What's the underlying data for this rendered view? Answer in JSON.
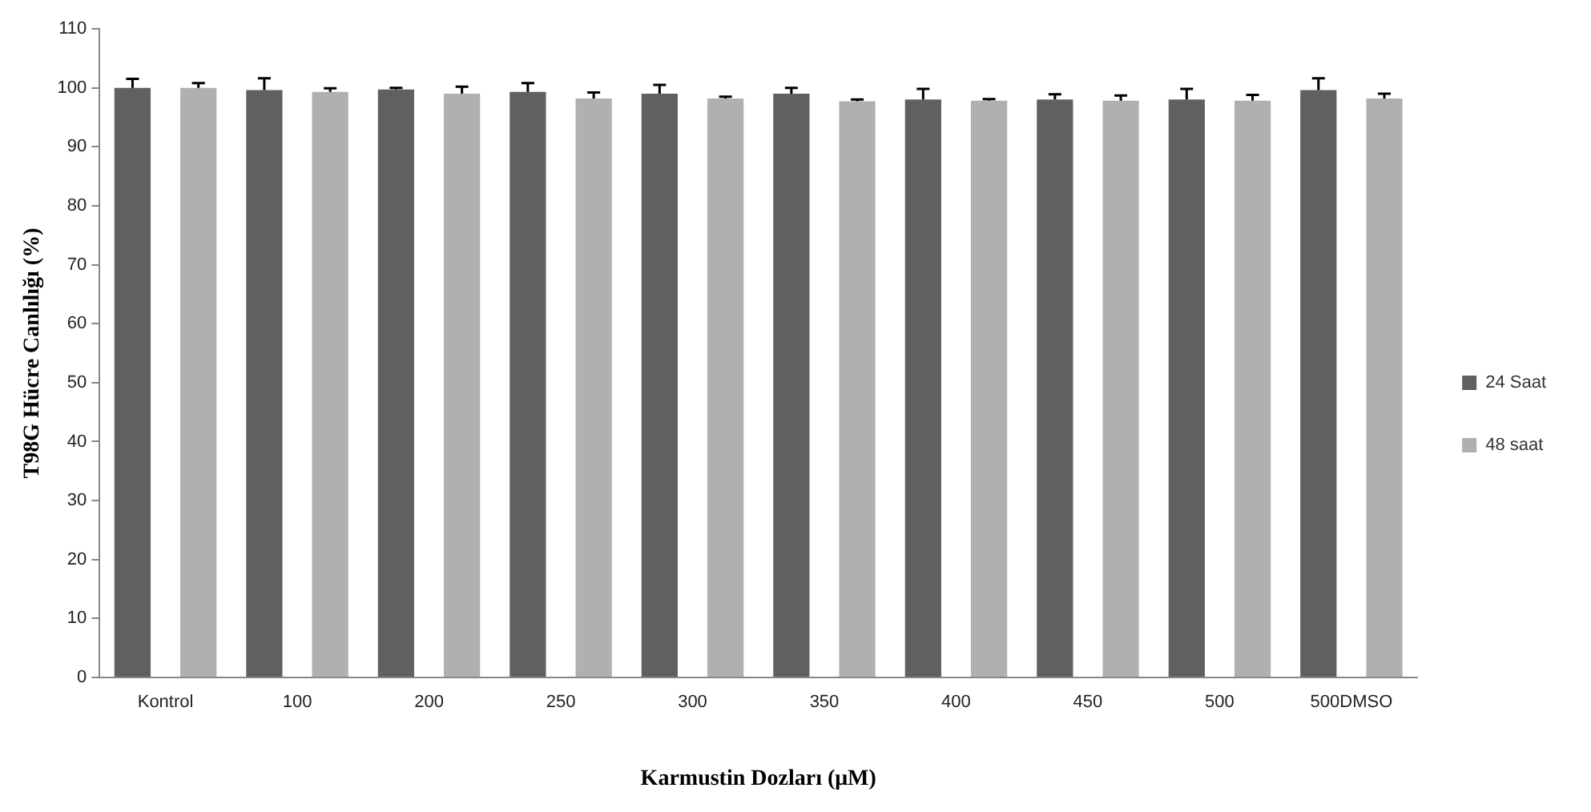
{
  "chart_data": {
    "type": "bar",
    "xlabel": "Karmustin Dozları (μM)",
    "ylabel": "T98G Hücre Canlılığı (%)",
    "categories": [
      "Kontrol",
      "100",
      "200",
      "250",
      "300",
      "350",
      "400",
      "450",
      "500",
      "500DMSO"
    ],
    "series": [
      {
        "name": "24 Saat",
        "color": "#606060",
        "values": [
          100,
          99.6,
          99.7,
          99.3,
          99,
          99,
          98,
          98,
          98,
          99.6
        ],
        "errors": [
          [
            100,
            101.5
          ],
          [
            99.6,
            101.6
          ],
          [
            99.7,
            100
          ],
          [
            99.3,
            100.8
          ],
          [
            99,
            100.5
          ],
          [
            99,
            100
          ],
          [
            98,
            99.8
          ],
          [
            98,
            98.9
          ],
          [
            98,
            99.8
          ],
          [
            99.6,
            101.6
          ]
        ]
      },
      {
        "name": "48 saat",
        "color": "#b0b0b0",
        "values": [
          100,
          99.3,
          99,
          98.2,
          98.2,
          97.7,
          97.8,
          97.8,
          97.8,
          98.2
        ],
        "errors": [
          [
            100,
            100.8
          ],
          [
            99.3,
            99.9
          ],
          [
            99,
            100.2
          ],
          [
            98.2,
            99.2
          ],
          [
            98.2,
            98.5
          ],
          [
            97.7,
            98
          ],
          [
            97.8,
            98.1
          ],
          [
            97.8,
            98.7
          ],
          [
            97.8,
            98.8
          ],
          [
            98.2,
            99
          ]
        ]
      }
    ],
    "ylim": [
      0,
      110
    ],
    "yticks": [
      0,
      10,
      20,
      30,
      40,
      50,
      60,
      70,
      80,
      90,
      100,
      110
    ],
    "grid": false,
    "legend": "right"
  }
}
